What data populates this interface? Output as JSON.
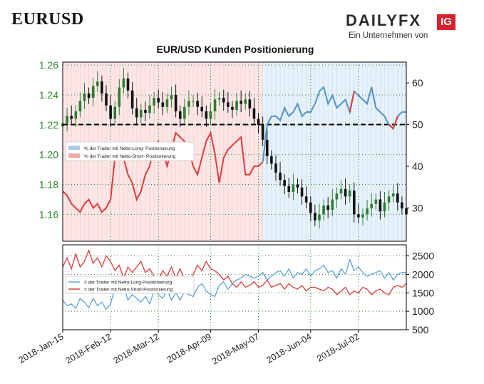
{
  "header": {
    "pair": "EURUSD"
  },
  "logo": {
    "brand_main": "DAILY",
    "brand_fx": "FX",
    "ig": "IG",
    "tagline": "Ein Unternehmen von"
  },
  "chart_data": [
    {
      "type": "line",
      "title": "EUR/USD Kunden Positionierung",
      "y_left_ticks": [
        "1.26",
        "1.24",
        "1.22",
        "1.20",
        "1.18",
        "1.16"
      ],
      "y_left_lim": [
        1.142,
        1.262
      ],
      "y_right_ticks": [
        "60",
        "50",
        "40",
        "30"
      ],
      "y_right_lim": [
        22,
        65
      ],
      "threshold": 50,
      "x_ticks": [
        "2018-Jan-15",
        "2018-Feb-12",
        "2018-Mar-12",
        "2018-Apr-09",
        "2018-May-07",
        "2018-Jun-04",
        "2018-Jul-02"
      ],
      "legend": [
        {
          "label": "% der Trader mit Netto-Long- Positionierung",
          "color": "#a9cbe8"
        },
        {
          "label": "% der Trader mit Netto-Short- Positionierung",
          "color": "#f3a7a7"
        }
      ],
      "price_close": [
        1.221,
        1.226,
        1.224,
        1.229,
        1.236,
        1.241,
        1.238,
        1.246,
        1.249,
        1.241,
        1.233,
        1.224,
        1.232,
        1.245,
        1.251,
        1.243,
        1.231,
        1.225,
        1.23,
        1.228,
        1.233,
        1.238,
        1.235,
        1.232,
        1.237,
        1.24,
        1.229,
        1.224,
        1.232,
        1.236,
        1.236,
        1.232,
        1.229,
        1.224,
        1.229,
        1.237,
        1.238,
        1.235,
        1.232,
        1.23,
        1.236,
        1.234,
        1.237,
        1.231,
        1.224,
        1.22,
        1.21,
        1.199,
        1.194,
        1.188,
        1.183,
        1.179,
        1.175,
        1.18,
        1.178,
        1.172,
        1.168,
        1.161,
        1.156,
        1.16,
        1.166,
        1.163,
        1.17,
        1.174,
        1.177,
        1.172,
        1.176,
        1.16,
        1.158,
        1.16,
        1.164,
        1.167,
        1.17,
        1.162,
        1.168,
        1.172,
        1.174,
        1.168,
        1.164,
        1.16
      ],
      "long_pct": [
        34,
        33,
        31,
        30,
        29,
        31,
        32,
        30,
        31,
        29,
        30,
        32,
        42,
        43,
        42,
        38,
        36,
        32,
        34,
        38,
        40,
        45,
        46,
        44,
        40,
        44,
        48,
        47,
        46,
        44,
        40,
        38,
        42,
        46,
        48,
        43,
        36,
        42,
        44,
        45,
        46,
        47,
        38,
        38,
        40,
        40,
        41,
        50,
        52,
        52,
        51,
        54,
        52,
        53,
        55,
        52,
        53,
        53,
        55,
        58,
        59,
        55,
        57,
        54,
        55,
        56,
        53,
        58,
        57,
        56,
        55,
        59,
        54,
        53,
        52,
        50,
        49,
        52,
        53,
        53
      ],
      "long_pct_blue_from": 46,
      "long_pct_red_segments": [
        [
          66,
          67
        ],
        [
          75,
          77
        ]
      ],
      "bar_regions": {
        "red_until": 46
      }
    },
    {
      "type": "line",
      "y_ticks": [
        "2500",
        "2000",
        "1500",
        "1000",
        "500"
      ],
      "y_lim": [
        500,
        2800
      ],
      "legend": [
        {
          "label": "# der Trader mit Netto-Long-Positionierung",
          "color": "#5aa3dc"
        },
        {
          "label": "# der Trader mit Netto-Short-Positionierung",
          "color": "#e03b3b"
        }
      ],
      "long_traders": [
        1300,
        1150,
        1200,
        1080,
        1350,
        1250,
        1100,
        1350,
        1150,
        1250,
        1050,
        1200,
        1650,
        1500,
        1700,
        1300,
        1450,
        1350,
        1250,
        1400,
        1200,
        1550,
        1450,
        1350,
        1600,
        1300,
        1500,
        1300,
        1550,
        1450,
        1400,
        1650,
        1750,
        1550,
        1450,
        1400,
        1700,
        1800,
        1600,
        1750,
        1850,
        1900,
        2000,
        1950,
        1900,
        1950,
        2050,
        1850,
        1950,
        2050,
        2100,
        1950,
        2150,
        1900,
        2050,
        2000,
        2150,
        1950,
        2100,
        2150,
        2250,
        2050,
        2100,
        1900,
        2150,
        2000,
        2400,
        2100,
        2200,
        2050,
        1950,
        2000,
        2050,
        2100,
        1900,
        2050,
        1850,
        2000,
        2050,
        2050
      ],
      "short_traders": [
        2200,
        2450,
        2150,
        2550,
        2200,
        2350,
        2650,
        2300,
        2450,
        2200,
        2500,
        2350,
        2100,
        2250,
        1900,
        2200,
        2050,
        2200,
        2350,
        2050,
        2150,
        1950,
        1850,
        2100,
        1950,
        2200,
        1900,
        2150,
        1850,
        1750,
        2000,
        2250,
        2100,
        2350,
        2150,
        2100,
        2000,
        1850,
        1950,
        1750,
        1650,
        1800,
        1650,
        1700,
        1800,
        1650,
        1700,
        1850,
        1650,
        1700,
        1750,
        1600,
        1750,
        1650,
        1600,
        1700,
        1550,
        1650,
        1650,
        1600,
        1550,
        1650,
        1600,
        1450,
        1550,
        1650,
        1450,
        1550,
        1500,
        1650,
        1600,
        1450,
        1550,
        1600,
        1500,
        1450,
        1650,
        1700,
        1650,
        1750
      ]
    }
  ]
}
